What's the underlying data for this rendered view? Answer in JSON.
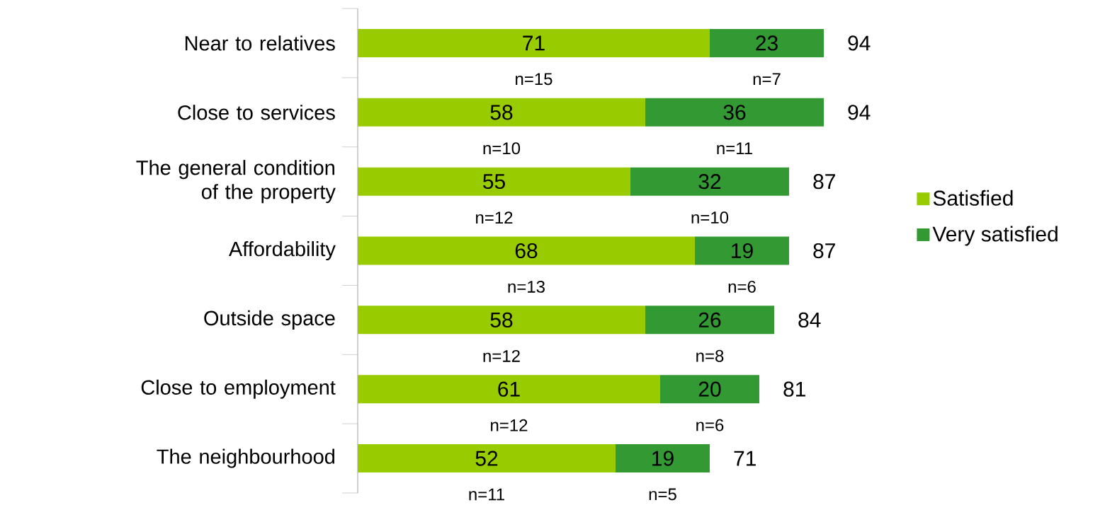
{
  "chart_data": {
    "type": "bar",
    "orientation": "horizontal",
    "stacked": true,
    "data_labels": true,
    "legend": "right",
    "categories": [
      "Near to relatives",
      "Close to services",
      "The general condition of the property",
      "Affordability",
      "Outside space",
      "Close to employment",
      "The neighbourhood"
    ],
    "series": [
      {
        "name": "Satisfied",
        "color": "#99cc00",
        "values": [
          71,
          58,
          55,
          68,
          58,
          61,
          52
        ]
      },
      {
        "name": "Very satisfied",
        "color": "#339933",
        "values": [
          23,
          36,
          32,
          19,
          26,
          20,
          19
        ]
      }
    ],
    "totals": [
      "94",
      "94",
      "87",
      "87",
      "84",
      "81",
      "71"
    ],
    "annotations": [
      "n=15",
      "n=7",
      "n=10",
      "n=11",
      "n=12",
      "n=10",
      "n=13",
      "n=6",
      "n=12",
      "n=8",
      "n=12",
      "n=6",
      "n=11",
      "n=5"
    ]
  }
}
